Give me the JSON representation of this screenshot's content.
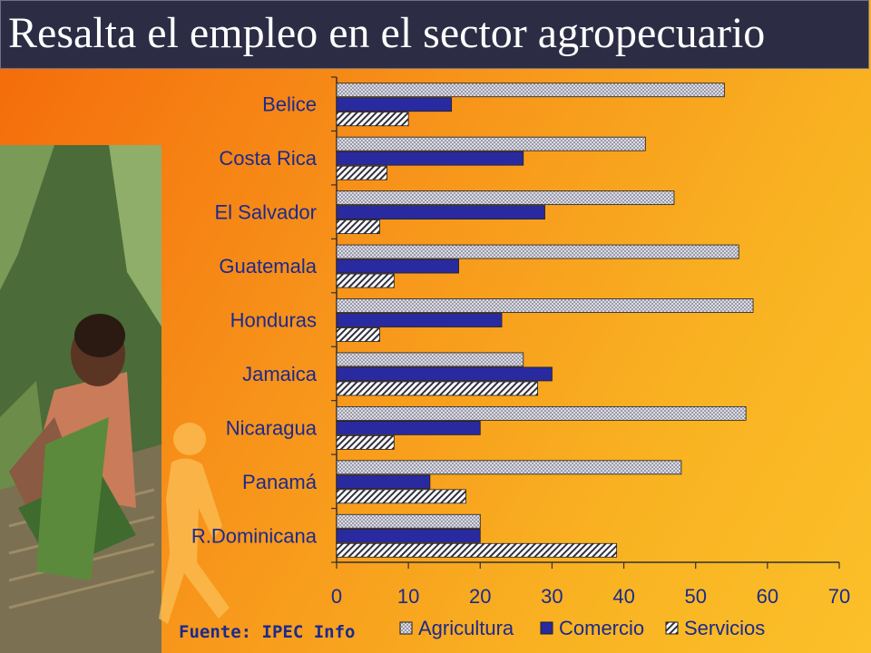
{
  "title": "Resalta el empleo en el sector agropecuario",
  "source": "Fuente: IPEC Info",
  "colors": {
    "title_bg": "#2c2d45",
    "agricultura": "#d8d8e0",
    "comercio": "#2a2aa0",
    "servicios": "#ffffff",
    "source_text": "#1c2a8c"
  },
  "chart_data": {
    "type": "bar",
    "orientation": "horizontal",
    "categories": [
      "Belice",
      "Costa Rica",
      "El Salvador",
      "Guatemala",
      "Honduras",
      "Jamaica",
      "Nicaragua",
      "Panamá",
      "R.Dominicana"
    ],
    "series": [
      {
        "name": "Agricultura",
        "values": [
          54,
          43,
          47,
          56,
          58,
          26,
          57,
          48,
          20
        ]
      },
      {
        "name": "Comercio",
        "values": [
          16,
          26,
          29,
          17,
          23,
          30,
          20,
          13,
          20
        ]
      },
      {
        "name": "Servicios",
        "values": [
          10,
          7,
          6,
          8,
          6,
          28,
          8,
          18,
          39
        ]
      }
    ],
    "x_ticks": [
      "0",
      "10",
      "20",
      "30",
      "40",
      "50",
      "60",
      "70"
    ],
    "xlim": [
      0,
      70
    ],
    "legend_position": "bottom",
    "grid": false
  }
}
